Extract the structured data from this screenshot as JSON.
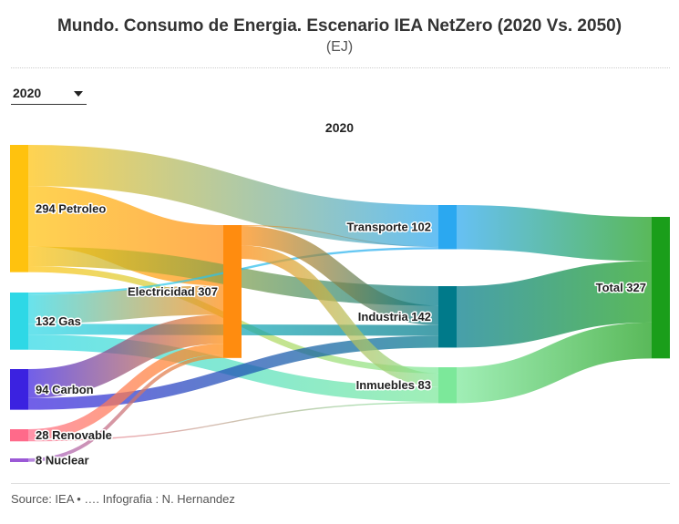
{
  "title": "Mundo. Consumo de Energia. Escenario IEA NetZero (2020 Vs. 2050)",
  "subtitle": "(EJ)",
  "dropdown": {
    "selected": "2020",
    "icon": "chevron-down-icon"
  },
  "footer": {
    "source": "Source: IEA • …. Infografia : N. Hernandez"
  },
  "chart_data": {
    "type": "sankey",
    "title": "2020",
    "units": "EJ",
    "nodes": [
      {
        "id": "petroleo",
        "label": "294 Petroleo",
        "value": 294,
        "column": 0,
        "color": "#FFC20E"
      },
      {
        "id": "gas",
        "label": "132 Gas",
        "value": 132,
        "column": 0,
        "color": "#2ED8E6"
      },
      {
        "id": "carbon",
        "label": "94 Carbon",
        "value": 94,
        "column": 0,
        "color": "#3B22E0"
      },
      {
        "id": "renovable",
        "label": "28 Renovable",
        "value": 28,
        "column": 0,
        "color": "#FF6A8A"
      },
      {
        "id": "nuclear",
        "label": "8 Nuclear",
        "value": 8,
        "column": 0,
        "color": "#9B59D6"
      },
      {
        "id": "electricidad",
        "label": "Electricidad 307",
        "value": 307,
        "column": 1,
        "color": "#FF8C0F"
      },
      {
        "id": "transporte",
        "label": "Transporte 102",
        "value": 102,
        "column": 2,
        "color": "#2BA8F0"
      },
      {
        "id": "industria",
        "label": "Industria 142",
        "value": 142,
        "column": 2,
        "color": "#007A8A"
      },
      {
        "id": "inmuebles",
        "label": "Inmuebles 83",
        "value": 83,
        "column": 2,
        "color": "#7CE89A"
      },
      {
        "id": "total",
        "label": "Total 327",
        "value": 327,
        "column": 3,
        "color": "#1A9E1A"
      }
    ],
    "links": [
      {
        "source": "petroleo",
        "target": "transporte",
        "value": 95
      },
      {
        "source": "petroleo",
        "target": "electricidad",
        "value": 140
      },
      {
        "source": "petroleo",
        "target": "industria",
        "value": 45
      },
      {
        "source": "petroleo",
        "target": "inmuebles",
        "value": 14
      },
      {
        "source": "gas",
        "target": "transporte",
        "value": 5
      },
      {
        "source": "gas",
        "target": "electricidad",
        "value": 67
      },
      {
        "source": "gas",
        "target": "industria",
        "value": 25
      },
      {
        "source": "gas",
        "target": "inmuebles",
        "value": 35
      },
      {
        "source": "carbon",
        "target": "electricidad",
        "value": 67
      },
      {
        "source": "carbon",
        "target": "industria",
        "value": 27
      },
      {
        "source": "renovable",
        "target": "electricidad",
        "value": 25
      },
      {
        "source": "renovable",
        "target": "inmuebles",
        "value": 3
      },
      {
        "source": "nuclear",
        "target": "electricidad",
        "value": 8
      },
      {
        "source": "electricidad",
        "target": "transporte",
        "value": 2
      },
      {
        "source": "electricidad",
        "target": "industria",
        "value": 45
      },
      {
        "source": "electricidad",
        "target": "inmuebles",
        "value": 31
      },
      {
        "source": "transporte",
        "target": "total",
        "value": 102
      },
      {
        "source": "industria",
        "target": "total",
        "value": 142
      },
      {
        "source": "inmuebles",
        "target": "total",
        "value": 83
      }
    ]
  }
}
